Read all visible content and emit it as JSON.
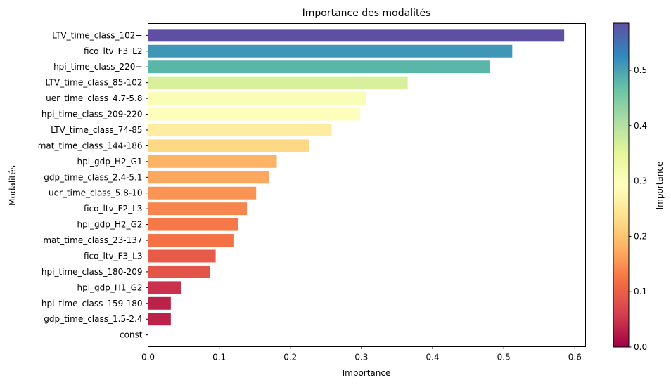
{
  "chart_data": {
    "type": "bar",
    "orientation": "horizontal",
    "title": "Importance des modalités",
    "xlabel": "Importance",
    "ylabel": "Modalités",
    "xlim": [
      0,
      0.615
    ],
    "xticks": [
      "0.0",
      "0.1",
      "0.2",
      "0.3",
      "0.4",
      "0.5",
      "0.6"
    ],
    "categories": [
      "LTV_time_class_102+",
      "fico_ltv_F3_L2",
      "hpi_time_class_220+",
      "LTV_time_class_85-102",
      "uer_time_class_4.7-5.8",
      "hpi_time_class_209-220",
      "LTV_time_class_74-85",
      "mat_time_class_144-186",
      "hpi_gdp_H2_G1",
      "gdp_time_class_2.4-5.1",
      "uer_time_class_5.8-10",
      "fico_ltv_F2_L3",
      "hpi_gdp_H2_G2",
      "mat_time_class_23-137",
      "fico_ltv_F3_L3",
      "hpi_time_class_180-209",
      "hpi_gdp_H1_G2",
      "hpi_time_class_159-180",
      "gdp_time_class_1.5-2.4",
      "const"
    ],
    "values": [
      0.585,
      0.512,
      0.48,
      0.365,
      0.307,
      0.298,
      0.258,
      0.226,
      0.181,
      0.17,
      0.152,
      0.139,
      0.127,
      0.12,
      0.095,
      0.087,
      0.046,
      0.032,
      0.032,
      0.0
    ],
    "colormap": "Spectral",
    "colorbar": {
      "label": "Importance",
      "range": [
        0,
        0.585
      ],
      "ticks": [
        "0.0",
        "0.1",
        "0.2",
        "0.3",
        "0.4",
        "0.5"
      ]
    },
    "grid": false
  }
}
